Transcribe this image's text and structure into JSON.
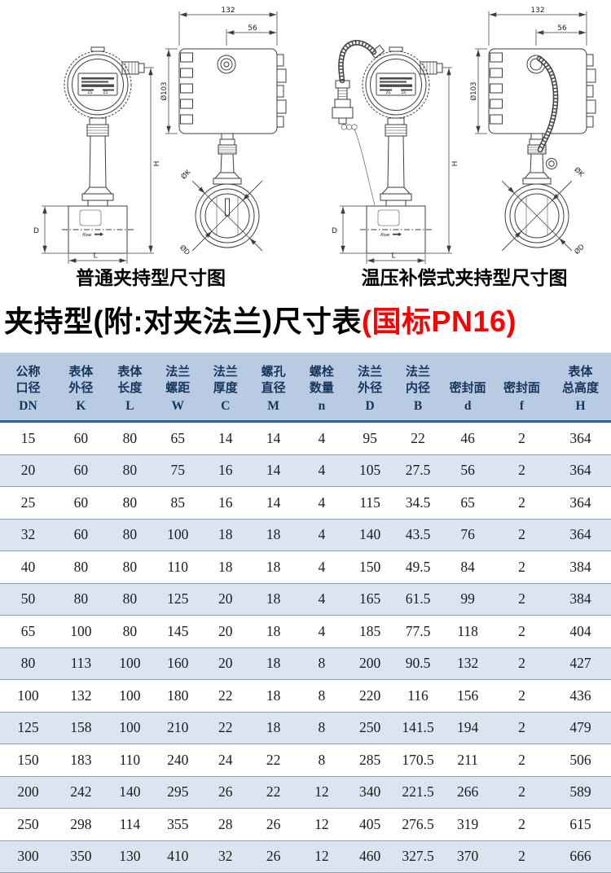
{
  "colors": {
    "accent_red": "#fe0000",
    "table_header_bg": "#b8cbe3",
    "table_alt_row_bg": "#dbe5f1",
    "table_header_rule": "#2e5fa5",
    "table_row_rule": "#8e9fb8",
    "drawing_line": "#3d3d3d"
  },
  "drawings": {
    "flow_label": "flow",
    "left": {
      "caption": "普通夹持型尺寸图",
      "front": {
        "h": "H",
        "d": "D",
        "l": "L"
      },
      "side": {
        "w132": "132",
        "w56": "56",
        "dia103": "Ø103",
        "diaK": "ØK",
        "diaD": "ØD"
      }
    },
    "right": {
      "caption": "温压补偿式夹持型尺寸图",
      "front": {
        "h": "H",
        "d": "D",
        "l": "L"
      },
      "side": {
        "w132": "132",
        "w56": "56",
        "dia103": "Ø103",
        "diaK": "ØK",
        "diaD": "ØD"
      }
    }
  },
  "title": {
    "main": "夹持型(附:对夹法兰)尺寸表",
    "highlight": "(国标PN16)"
  },
  "table": {
    "columns": [
      {
        "cn": "公称\n口径",
        "code": "DN"
      },
      {
        "cn": "表体\n外径",
        "code": "K"
      },
      {
        "cn": "表体\n长度",
        "code": "L"
      },
      {
        "cn": "法兰\n螺距",
        "code": "W"
      },
      {
        "cn": "法兰\n厚度",
        "code": "C"
      },
      {
        "cn": "螺孔\n直径",
        "code": "M"
      },
      {
        "cn": "螺栓\n数量",
        "code": "n"
      },
      {
        "cn": "法兰\n外径",
        "code": "D"
      },
      {
        "cn": "法兰\n内径",
        "code": "B"
      },
      {
        "cn": "密封面",
        "code": "d"
      },
      {
        "cn": "密封面",
        "code": "f"
      },
      {
        "cn": "表体\n总高度",
        "code": "H"
      }
    ],
    "rows": [
      [
        "15",
        "60",
        "80",
        "65",
        "14",
        "14",
        "4",
        "95",
        "22",
        "46",
        "2",
        "364"
      ],
      [
        "20",
        "60",
        "80",
        "75",
        "16",
        "14",
        "4",
        "105",
        "27.5",
        "56",
        "2",
        "364"
      ],
      [
        "25",
        "60",
        "80",
        "85",
        "16",
        "14",
        "4",
        "115",
        "34.5",
        "65",
        "2",
        "364"
      ],
      [
        "32",
        "60",
        "80",
        "100",
        "18",
        "18",
        "4",
        "140",
        "43.5",
        "76",
        "2",
        "364"
      ],
      [
        "40",
        "80",
        "80",
        "110",
        "18",
        "18",
        "4",
        "150",
        "49.5",
        "84",
        "2",
        "384"
      ],
      [
        "50",
        "80",
        "80",
        "125",
        "20",
        "18",
        "4",
        "165",
        "61.5",
        "99",
        "2",
        "384"
      ],
      [
        "65",
        "100",
        "80",
        "145",
        "20",
        "18",
        "4",
        "185",
        "77.5",
        "118",
        "2",
        "404"
      ],
      [
        "80",
        "113",
        "100",
        "160",
        "20",
        "18",
        "8",
        "200",
        "90.5",
        "132",
        "2",
        "427"
      ],
      [
        "100",
        "132",
        "100",
        "180",
        "22",
        "18",
        "8",
        "220",
        "116",
        "156",
        "2",
        "436"
      ],
      [
        "125",
        "158",
        "100",
        "210",
        "22",
        "18",
        "8",
        "250",
        "141.5",
        "194",
        "2",
        "479"
      ],
      [
        "150",
        "183",
        "110",
        "240",
        "24",
        "22",
        "8",
        "285",
        "170.5",
        "211",
        "2",
        "506"
      ],
      [
        "200",
        "242",
        "140",
        "295",
        "26",
        "22",
        "12",
        "340",
        "221.5",
        "266",
        "2",
        "589"
      ],
      [
        "250",
        "298",
        "114",
        "355",
        "28",
        "26",
        "12",
        "405",
        "276.5",
        "319",
        "2",
        "615"
      ],
      [
        "300",
        "350",
        "130",
        "410",
        "32",
        "26",
        "12",
        "460",
        "327.5",
        "370",
        "2",
        "666"
      ]
    ]
  }
}
